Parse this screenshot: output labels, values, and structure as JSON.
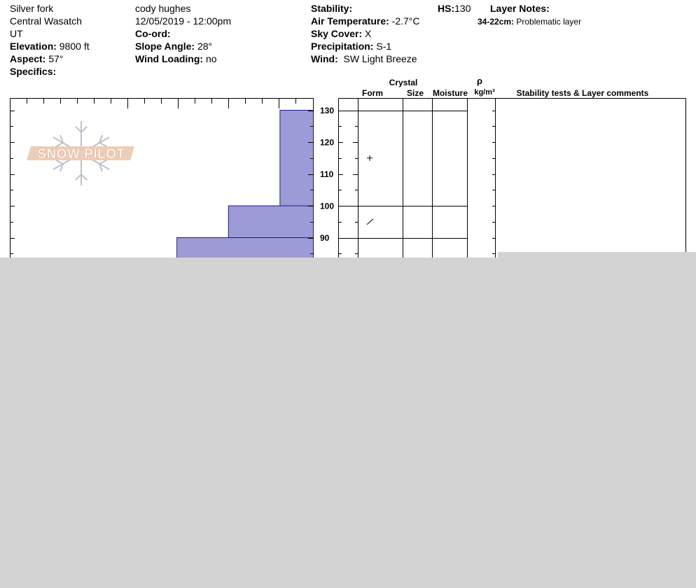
{
  "header": {
    "location": "Silver fork",
    "range": "Central Wasatch",
    "state": "UT",
    "elevation_label": "Elevation:",
    "elevation_value": "9800 ft",
    "aspect_label": "Aspect:",
    "aspect_value": "57°",
    "specifics_label": "Specifics:",
    "observer": "cody hughes",
    "datetime": "12/05/2019 - 12:00pm",
    "coord_label": "Co-ord:",
    "slope_label": "Slope Angle:",
    "slope_value": "28°",
    "wind_loading_label": "Wind Loading:",
    "wind_loading_value": "no",
    "stability_label": "Stability:",
    "air_temp_label": "Air Temperature:",
    "air_temp_value": "-2.7°C",
    "sky_label": "Sky Cover:",
    "sky_value": "X",
    "precip_label": "Precipitation:",
    "precip_value": "S-1",
    "wind_label": "Wind:",
    "wind_value": "SW  Light Breeze",
    "hs_label": "HS:",
    "hs_value": "130",
    "layer_notes_label": "Layer Notes:",
    "layer_note_range": "34-22cm:",
    "layer_note_text": "Problematic layer"
  },
  "logo": {
    "text": "SNOW PILOT"
  },
  "columns": {
    "crystal": "Crystal",
    "form": "Form",
    "size": "Size",
    "moisture": "Moisture",
    "rho": "ρ",
    "density_unit": "kg/m³",
    "comments": "Stability tests & Layer comments"
  },
  "chart_data": {
    "type": "bar",
    "orientation": "horizontal-steps",
    "y_axis_label": "",
    "ylim": [
      83,
      134
    ],
    "y_ticks": [
      {
        "value": 130,
        "label": "130"
      },
      {
        "value": 120,
        "label": "120"
      },
      {
        "value": 110,
        "label": "110"
      },
      {
        "value": 100,
        "label": "100"
      },
      {
        "value": 90,
        "label": "90"
      }
    ],
    "hardness_segments": [
      {
        "top": 130,
        "bottom": 100,
        "hardness_fraction": 0.11
      },
      {
        "top": 100,
        "bottom": 90,
        "hardness_fraction": 0.28
      },
      {
        "top": 90,
        "bottom": 83,
        "hardness_fraction": 0.45
      }
    ],
    "layer_boundaries": [
      130,
      100,
      90
    ],
    "crystal_forms": [
      {
        "depth": 115,
        "symbol": "+"
      },
      {
        "depth": 95,
        "symbol": "/"
      }
    ],
    "fill_color": "#9d9bd7",
    "stroke_color": "#1a1a80"
  },
  "overlay_color": "#d3d3d3"
}
